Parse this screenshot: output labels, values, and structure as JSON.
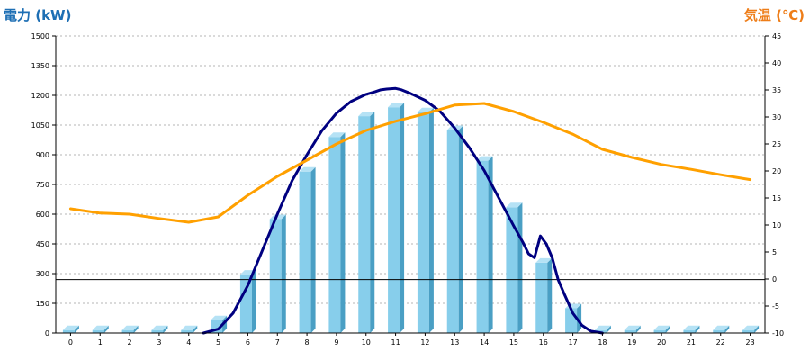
{
  "chart_data": {
    "type": "bar",
    "left_axis_title": "電力 (kW)",
    "right_axis_title": "気温 (℃)",
    "categories": [
      "0",
      "1",
      "2",
      "3",
      "4",
      "5",
      "6",
      "7",
      "8",
      "9",
      "10",
      "11",
      "12",
      "13",
      "14",
      "15",
      "16",
      "17",
      "18",
      "19",
      "20",
      "21",
      "22",
      "23"
    ],
    "left_axis": {
      "min": 0,
      "max": 1500,
      "ticks": [
        0,
        150,
        300,
        450,
        600,
        750,
        900,
        1050,
        1200,
        1350,
        1500
      ]
    },
    "right_axis": {
      "min": -10,
      "max": 45,
      "ticks": [
        -10,
        -5,
        0,
        5,
        10,
        15,
        20,
        25,
        30,
        35,
        40,
        45
      ]
    },
    "grid": true,
    "series": [
      {
        "kind": "bar",
        "axis": "left",
        "values": [
          15,
          15,
          15,
          15,
          15,
          65,
          295,
          575,
          815,
          990,
          1095,
          1140,
          1115,
          1025,
          870,
          635,
          355,
          125,
          15,
          15,
          15,
          15,
          15,
          15
        ]
      },
      {
        "kind": "line",
        "axis": "left",
        "x": [
          4.5,
          5,
          5.5,
          6,
          6.5,
          7,
          7.5,
          8,
          8.5,
          9,
          9.5,
          10,
          10.3,
          10.5,
          10.7,
          11,
          11.2,
          11.5,
          12,
          12.5,
          13,
          13.5,
          14,
          14.5,
          15,
          15.3,
          15.5,
          15.7,
          15.9,
          16.1,
          16.3,
          16.5,
          16.7,
          17,
          17.3,
          17.6,
          18
        ],
        "y": [
          0,
          20,
          100,
          240,
          420,
          600,
          770,
          900,
          1020,
          1110,
          1170,
          1205,
          1218,
          1228,
          1232,
          1235,
          1228,
          1210,
          1175,
          1120,
          1035,
          935,
          820,
          680,
          540,
          460,
          400,
          380,
          490,
          450,
          380,
          270,
          200,
          100,
          40,
          10,
          0
        ]
      },
      {
        "kind": "line",
        "axis": "right",
        "x": [
          0,
          1,
          2,
          3,
          4,
          5,
          6,
          7,
          8,
          9,
          10,
          11,
          12,
          13,
          14,
          15,
          16,
          17,
          18,
          19,
          20,
          21,
          22,
          23
        ],
        "y": [
          13,
          12.2,
          12,
          11.2,
          10.5,
          11.5,
          15.5,
          19,
          22,
          25,
          27.5,
          29.2,
          30.6,
          32.2,
          32.5,
          31,
          29,
          26.8,
          24,
          22.5,
          21.2,
          20.3,
          19.3,
          18.4
        ]
      }
    ],
    "reference_line": {
      "axis": "left",
      "value": 270
    },
    "colors": {
      "bar_front": "#87ceeb",
      "bar_side": "#4a9fc4",
      "bar_top": "#b5e2f5",
      "power_line": "#000080",
      "temp_line": "#ffa000",
      "left_title": "#1e6fb4",
      "right_title": "#ee7d18",
      "grid": "#b4b4b4",
      "axis": "#000000"
    }
  }
}
